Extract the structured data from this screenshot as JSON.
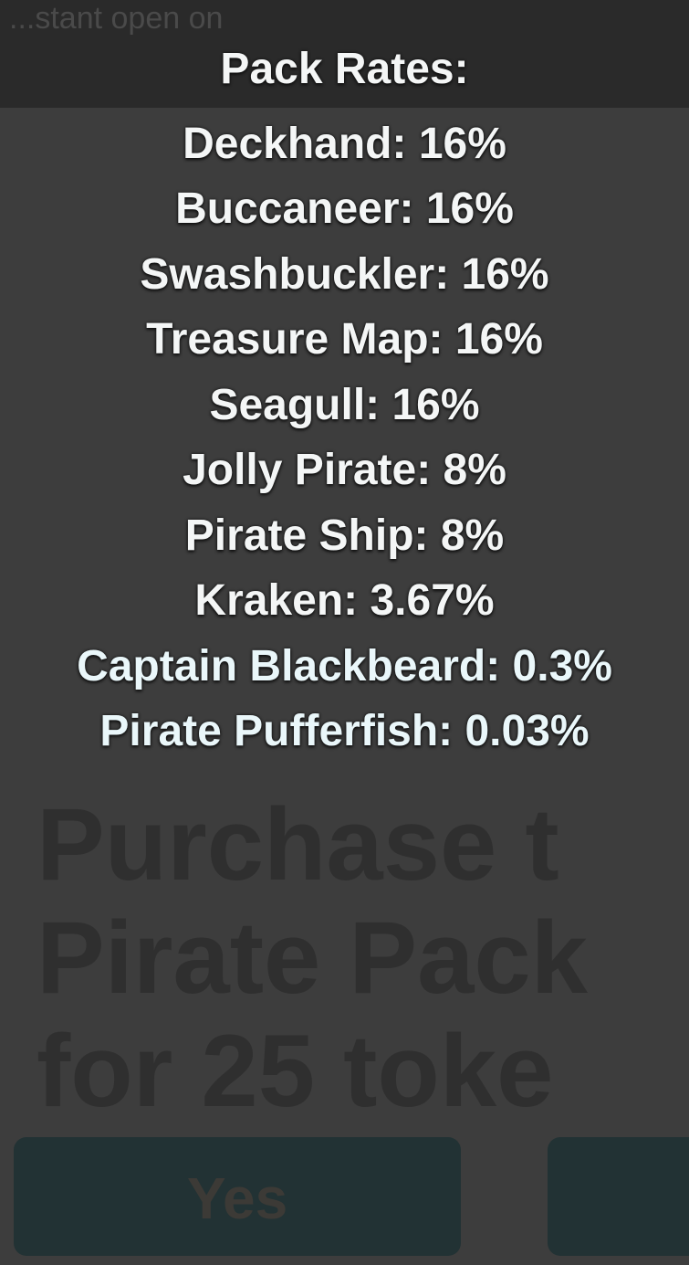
{
  "background": {
    "top_text": "...stant open on",
    "dialog_title_lines": [
      "Purchase t",
      "Pirate Pack",
      "for 25 toke"
    ],
    "yes_button_label": "Yes"
  },
  "pack_rates": {
    "heading": "Pack Rates:",
    "items": [
      "Deckhand: 16%",
      "Buccaneer: 16%",
      "Swashbuckler: 16%",
      "Treasure Map: 16%",
      "Seagull: 16%",
      "Jolly Pirate: 8%",
      "Pirate Ship: 8%",
      "Kraken: 3.67%",
      "Captain Blackbeard: 0.3%",
      "Pirate Pufferfish: 0.03%"
    ]
  }
}
